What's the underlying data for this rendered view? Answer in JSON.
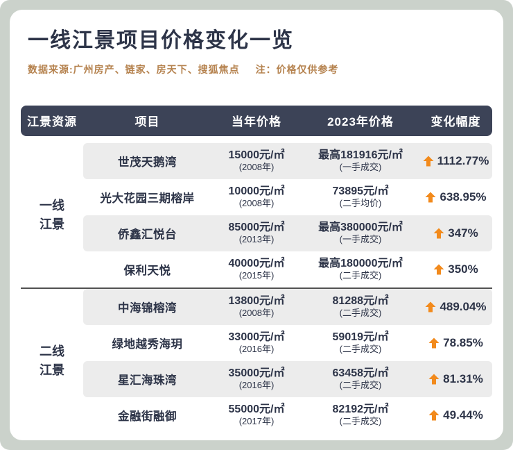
{
  "page": {
    "title": "一线江景项目价格变化一览",
    "source_note": "数据来源:广州房产、链家、房天下、搜狐焦点",
    "disclaimer": "注：价格仅供参考"
  },
  "table": {
    "headers": {
      "resource": "江景资源",
      "project": "项目",
      "original_price": "当年价格",
      "price_2023": "2023年价格",
      "change": "变化幅度"
    },
    "groups": [
      {
        "label": "一线江景",
        "rows": [
          {
            "project": "世茂天鹅湾",
            "original_price": "15000元/㎡",
            "original_note": "(2008年)",
            "price_2023": "最高181916元/㎡",
            "price_2023_note": "(一手成交)",
            "change": "1112.77%"
          },
          {
            "project": "光大花园三期榕岸",
            "original_price": "10000元/㎡",
            "original_note": "(2008年)",
            "price_2023": "73895元/㎡",
            "price_2023_note": "(二手均价)",
            "change": "638.95%"
          },
          {
            "project": "侨鑫汇悦台",
            "original_price": "85000元/㎡",
            "original_note": "(2013年)",
            "price_2023": "最高380000元/㎡",
            "price_2023_note": "(一手成交)",
            "change": "347%"
          },
          {
            "project": "保利天悦",
            "original_price": "40000元/㎡",
            "original_note": "(2015年)",
            "price_2023": "最高180000元/㎡",
            "price_2023_note": "(二手成交)",
            "change": "350%"
          }
        ]
      },
      {
        "label": "二线江景",
        "rows": [
          {
            "project": "中海锦榕湾",
            "original_price": "13800元/㎡",
            "original_note": "(2008年)",
            "price_2023": "81288元/㎡",
            "price_2023_note": "(二手成交)",
            "change": "489.04%"
          },
          {
            "project": "绿地越秀海玥",
            "original_price": "33000元/㎡",
            "original_note": "(2016年)",
            "price_2023": "59019元/㎡",
            "price_2023_note": "(二手成交)",
            "change": "78.85%"
          },
          {
            "project": "星汇海珠湾",
            "original_price": "35000元/㎡",
            "original_note": "(2016年)",
            "price_2023": "63458元/㎡",
            "price_2023_note": "(二手成交)",
            "change": "81.31%"
          },
          {
            "project": "金融街融御",
            "original_price": "55000元/㎡",
            "original_note": "(2017年)",
            "price_2023": "82192元/㎡",
            "price_2023_note": "(二手成交)",
            "change": "49.44%"
          }
        ]
      }
    ]
  },
  "chart_data": {
    "type": "table",
    "title": "一线江景项目价格变化一览",
    "columns": [
      "江景资源",
      "项目",
      "当年价格",
      "2023年价格",
      "变化幅度"
    ],
    "rows": [
      [
        "一线江景",
        "世茂天鹅湾",
        "15000元/㎡ (2008年)",
        "最高181916元/㎡ (一手成交)",
        "+1112.77%"
      ],
      [
        "一线江景",
        "光大花园三期榕岸",
        "10000元/㎡ (2008年)",
        "73895元/㎡ (二手均价)",
        "+638.95%"
      ],
      [
        "一线江景",
        "侨鑫汇悦台",
        "85000元/㎡ (2013年)",
        "最高380000元/㎡ (一手成交)",
        "+347%"
      ],
      [
        "一线江景",
        "保利天悦",
        "40000元/㎡ (2015年)",
        "最高180000元/㎡ (二手成交)",
        "+350%"
      ],
      [
        "二线江景",
        "中海锦榕湾",
        "13800元/㎡ (2008年)",
        "81288元/㎡ (二手成交)",
        "+489.04%"
      ],
      [
        "二线江景",
        "绿地越秀海玥",
        "33000元/㎡ (2016年)",
        "59019元/㎡ (二手成交)",
        "+78.85%"
      ],
      [
        "二线江景",
        "星汇海珠湾",
        "35000元/㎡ (2016年)",
        "63458元/㎡ (二手成交)",
        "+81.31%"
      ],
      [
        "二线江景",
        "金融街融御",
        "55000元/㎡ (2017年)",
        "82192元/㎡ (二手成交)",
        "+49.44%"
      ]
    ]
  },
  "colors": {
    "frame_bg": "#cbd2cb",
    "header_bg": "#3c4357",
    "row_alt_bg": "#ececec",
    "title_color": "#2d3448",
    "text_color": "#2d3448",
    "note_color": "#b5824e",
    "accent_orange": "#f28a1c",
    "separator": "#515151"
  }
}
